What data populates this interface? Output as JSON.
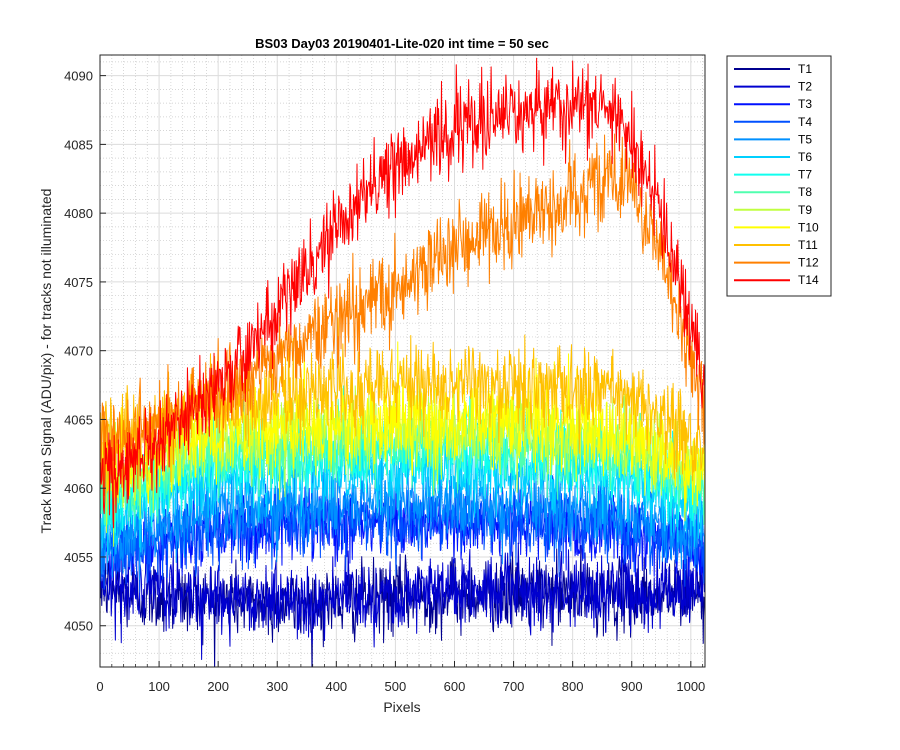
{
  "chart_data": {
    "type": "line",
    "title": "BS03 Day03 20190401-Lite-020 int time = 50 sec",
    "xlabel": "Pixels",
    "ylabel": "Track Mean Signal (ADU/pix) - for tracks not illuminated",
    "xlim": [
      0,
      1024
    ],
    "ylim": [
      4047,
      4091.5
    ],
    "xticks": [
      0,
      100,
      200,
      300,
      400,
      500,
      600,
      700,
      800,
      900,
      1000
    ],
    "yticks": [
      4050,
      4055,
      4060,
      4065,
      4070,
      4075,
      4080,
      4085,
      4090
    ],
    "grid": "major and minor, dotted",
    "legend_position": "outside right, top",
    "noise_note": "each series is a noisy trace; values below are the underlying trend sampled every 32 pixels",
    "x": [
      0,
      32,
      64,
      96,
      128,
      160,
      192,
      224,
      256,
      288,
      320,
      352,
      384,
      416,
      448,
      480,
      512,
      544,
      576,
      608,
      640,
      672,
      704,
      736,
      768,
      800,
      832,
      864,
      896,
      928,
      960,
      992,
      1024
    ],
    "series": [
      {
        "name": "T1",
        "color": "#00008F",
        "noise": 1.3,
        "values": [
          4053.0,
          4052.4,
          4052.2,
          4052.1,
          4052.0,
          4052.0,
          4051.9,
          4051.8,
          4051.7,
          4051.6,
          4051.6,
          4051.6,
          4051.7,
          4051.8,
          4051.9,
          4052.0,
          4052.1,
          4052.2,
          4052.2,
          4052.3,
          4052.3,
          4052.3,
          4052.3,
          4052.3,
          4052.3,
          4052.2,
          4052.2,
          4052.2,
          4052.2,
          4052.2,
          4052.2,
          4052.2,
          4052.3
        ]
      },
      {
        "name": "T2",
        "color": "#0000CF",
        "noise": 1.3,
        "values": [
          4053.4,
          4052.8,
          4052.6,
          4052.5,
          4052.4,
          4052.3,
          4052.2,
          4052.1,
          4052.0,
          4051.9,
          4051.9,
          4051.9,
          4052.0,
          4052.1,
          4052.2,
          4052.3,
          4052.4,
          4052.5,
          4052.5,
          4052.6,
          4052.6,
          4052.6,
          4052.6,
          4052.6,
          4052.6,
          4052.5,
          4052.5,
          4052.5,
          4052.5,
          4052.5,
          4052.5,
          4052.5,
          4052.6
        ]
      },
      {
        "name": "T3",
        "color": "#0010FF",
        "noise": 1.3,
        "values": [
          4055.5,
          4055.3,
          4055.6,
          4056.0,
          4056.3,
          4056.6,
          4056.8,
          4057.0,
          4057.1,
          4057.2,
          4057.3,
          4057.4,
          4057.4,
          4057.4,
          4057.4,
          4057.4,
          4057.4,
          4057.4,
          4057.4,
          4057.4,
          4057.4,
          4057.4,
          4057.4,
          4057.3,
          4057.2,
          4057.1,
          4057.0,
          4056.9,
          4056.7,
          4056.4,
          4056.1,
          4055.8,
          4055.6
        ]
      },
      {
        "name": "T4",
        "color": "#0050FF",
        "noise": 1.3,
        "values": [
          4055.8,
          4055.6,
          4055.9,
          4056.3,
          4056.6,
          4056.9,
          4057.1,
          4057.3,
          4057.4,
          4057.5,
          4057.6,
          4057.7,
          4057.7,
          4057.7,
          4057.7,
          4057.7,
          4057.7,
          4057.7,
          4057.7,
          4057.7,
          4057.7,
          4057.7,
          4057.7,
          4057.6,
          4057.5,
          4057.4,
          4057.3,
          4057.2,
          4057.0,
          4056.7,
          4056.4,
          4056.1,
          4055.9
        ]
      },
      {
        "name": "T5",
        "color": "#0090FF",
        "noise": 1.3,
        "values": [
          4056.5,
          4056.5,
          4056.9,
          4057.3,
          4057.7,
          4058.0,
          4058.2,
          4058.4,
          4058.5,
          4058.6,
          4058.7,
          4058.8,
          4058.8,
          4058.8,
          4058.9,
          4058.9,
          4058.9,
          4058.9,
          4058.9,
          4058.9,
          4058.9,
          4058.9,
          4058.9,
          4058.8,
          4058.7,
          4058.6,
          4058.5,
          4058.3,
          4058.0,
          4057.6,
          4057.2,
          4056.8,
          4056.5
        ]
      },
      {
        "name": "T6",
        "color": "#00D0FF",
        "noise": 1.3,
        "values": [
          4058.0,
          4058.2,
          4058.8,
          4059.3,
          4059.7,
          4060.1,
          4060.4,
          4060.6,
          4060.8,
          4060.9,
          4061.0,
          4061.1,
          4061.2,
          4061.2,
          4061.3,
          4061.3,
          4061.3,
          4061.3,
          4061.3,
          4061.3,
          4061.3,
          4061.3,
          4061.3,
          4061.2,
          4061.1,
          4061.0,
          4060.8,
          4060.6,
          4060.3,
          4059.9,
          4059.4,
          4058.9,
          4058.5
        ]
      },
      {
        "name": "T7",
        "color": "#10FFEF",
        "noise": 1.3,
        "values": [
          4059.0,
          4059.3,
          4059.9,
          4060.4,
          4060.9,
          4061.3,
          4061.6,
          4061.9,
          4062.1,
          4062.2,
          4062.3,
          4062.4,
          4062.5,
          4062.5,
          4062.6,
          4062.6,
          4062.6,
          4062.6,
          4062.6,
          4062.6,
          4062.6,
          4062.6,
          4062.6,
          4062.5,
          4062.4,
          4062.3,
          4062.1,
          4061.9,
          4061.6,
          4061.1,
          4060.6,
          4060.0,
          4059.5
        ]
      },
      {
        "name": "T8",
        "color": "#50FFAF",
        "noise": 1.3,
        "values": [
          4059.5,
          4059.8,
          4060.4,
          4061.0,
          4061.5,
          4061.9,
          4062.2,
          4062.5,
          4062.7,
          4062.8,
          4062.9,
          4063.0,
          4063.1,
          4063.1,
          4063.2,
          4063.2,
          4063.2,
          4063.2,
          4063.2,
          4063.2,
          4063.2,
          4063.2,
          4063.2,
          4063.1,
          4063.0,
          4062.9,
          4062.7,
          4062.5,
          4062.2,
          4061.7,
          4061.2,
          4060.6,
          4060.1
        ]
      },
      {
        "name": "T9",
        "color": "#C0FF40",
        "noise": 1.4,
        "values": [
          4061.0,
          4061.0,
          4061.6,
          4062.2,
          4062.7,
          4063.1,
          4063.4,
          4063.6,
          4063.8,
          4063.9,
          4064.0,
          4064.1,
          4064.1,
          4064.2,
          4064.2,
          4064.3,
          4064.3,
          4064.3,
          4064.3,
          4064.3,
          4064.3,
          4064.3,
          4064.2,
          4064.1,
          4064.0,
          4063.9,
          4063.7,
          4063.5,
          4063.2,
          4062.7,
          4062.2,
          4061.6,
          4061.0
        ]
      },
      {
        "name": "T10",
        "color": "#FFFF00",
        "noise": 1.6,
        "values": [
          4061.5,
          4061.5,
          4062.0,
          4062.6,
          4063.1,
          4063.5,
          4063.8,
          4064.1,
          4064.3,
          4064.5,
          4064.6,
          4064.7,
          4064.8,
          4064.9,
          4064.9,
          4065.0,
          4065.0,
          4065.0,
          4065.0,
          4065.0,
          4065.0,
          4065.0,
          4064.9,
          4064.8,
          4064.7,
          4064.6,
          4064.4,
          4064.2,
          4063.8,
          4063.3,
          4062.7,
          4062.0,
          4061.3
        ]
      },
      {
        "name": "T11",
        "color": "#FFC000",
        "noise": 1.5,
        "values": [
          4064.0,
          4063.5,
          4064.0,
          4064.6,
          4065.1,
          4065.6,
          4066.0,
          4066.3,
          4066.5,
          4066.7,
          4066.9,
          4067.0,
          4067.1,
          4067.2,
          4067.3,
          4067.4,
          4067.4,
          4067.5,
          4067.5,
          4067.5,
          4067.5,
          4067.5,
          4067.5,
          4067.4,
          4067.3,
          4067.2,
          4067.0,
          4066.8,
          4066.3,
          4065.6,
          4064.8,
          4063.9,
          4063.0
        ]
      },
      {
        "name": "T12",
        "color": "#FF8000",
        "noise": 1.5,
        "values": [
          4064.0,
          4063.5,
          4064.0,
          4064.8,
          4065.5,
          4066.2,
          4067.0,
          4067.8,
          4068.5,
          4069.2,
          4070.0,
          4070.8,
          4071.6,
          4072.5,
          4073.4,
          4074.3,
          4075.2,
          4076.0,
          4076.8,
          4077.5,
          4078.2,
          4078.9,
          4079.6,
          4080.3,
          4080.9,
          4081.5,
          4082.1,
          4082.5,
          4081.8,
          4079.5,
          4075.5,
          4070.5,
          4066.0
        ]
      },
      {
        "name": "T14",
        "color": "#FF0000",
        "noise": 1.5,
        "values": [
          4061.0,
          4061.0,
          4062.0,
          4063.2,
          4064.5,
          4065.8,
          4067.2,
          4068.6,
          4070.2,
          4071.9,
          4073.8,
          4075.8,
          4077.8,
          4079.6,
          4081.3,
          4082.7,
          4083.9,
          4084.9,
          4085.7,
          4086.3,
          4086.8,
          4087.1,
          4087.3,
          4087.5,
          4087.6,
          4087.7,
          4087.6,
          4087.1,
          4085.5,
          4082.3,
          4078.0,
          4073.0,
          4068.0
        ]
      }
    ]
  }
}
